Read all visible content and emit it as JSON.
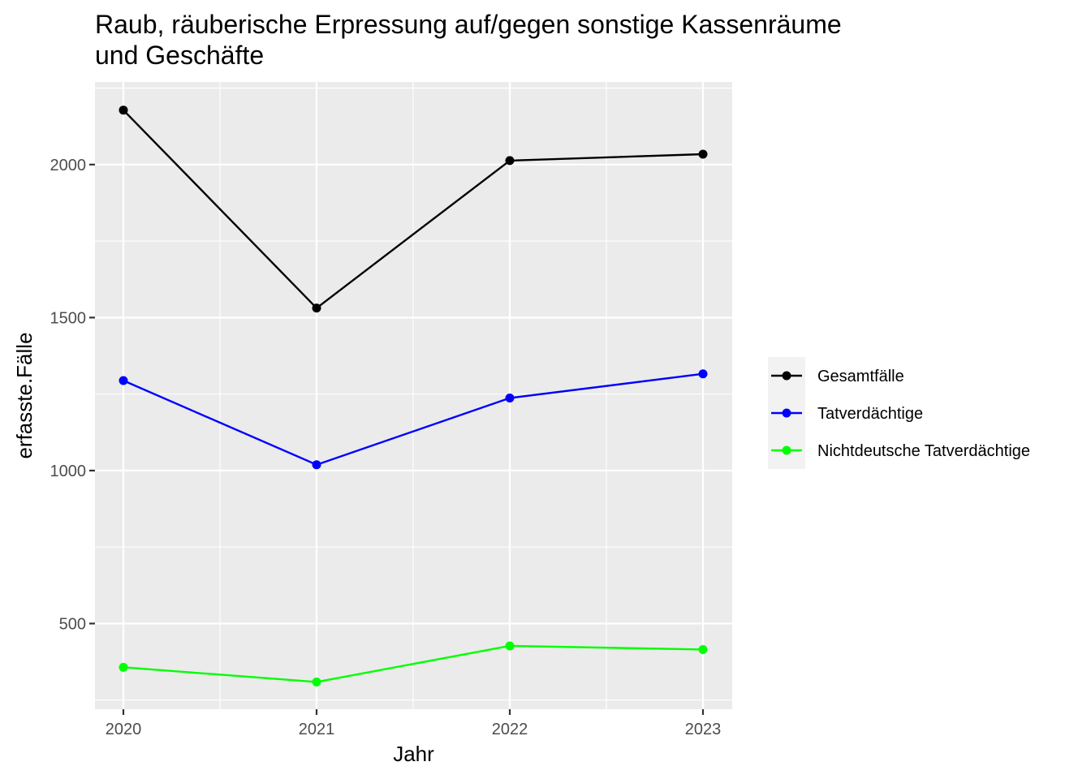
{
  "chart_data": {
    "type": "line",
    "title_lines": [
      "Raub, räuberische Erpressung auf/gegen sonstige Kassenräume",
      "und Geschäfte"
    ],
    "xlabel": "Jahr",
    "ylabel": "erfasste.Fälle",
    "x": [
      "2020",
      "2021",
      "2022",
      "2023"
    ],
    "y_ticks": [
      500,
      1000,
      1500,
      2000
    ],
    "y_tick_labels": [
      "500",
      "1000",
      "1500",
      "2000"
    ],
    "ylim": [
      220,
      2270
    ],
    "grid": true,
    "legend_position": "right",
    "series": [
      {
        "name": "Gesamtfälle",
        "color": "#000000",
        "values": [
          2178,
          1531,
          2013,
          2034
        ]
      },
      {
        "name": "Tatverdächtige",
        "color": "#0000ff",
        "values": [
          1294,
          1019,
          1237,
          1316
        ]
      },
      {
        "name": "Nichtdeutsche Tatverdächtige",
        "color": "#00ff00",
        "values": [
          357,
          309,
          427,
          415
        ]
      }
    ]
  }
}
